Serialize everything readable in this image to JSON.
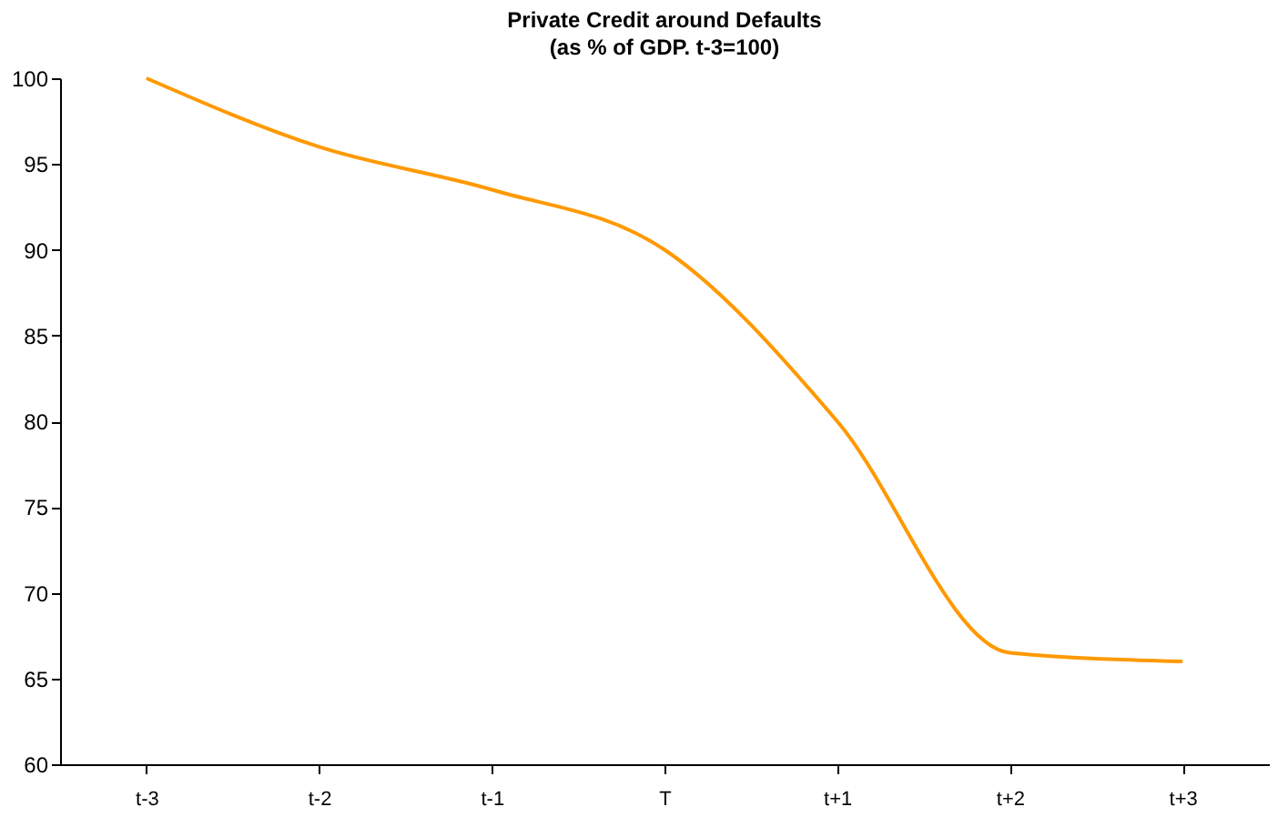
{
  "chart_data": {
    "type": "line",
    "title": "Private Credit around Defaults",
    "subtitle": "(as % of GDP.  t-3=100)",
    "categories": [
      "t-3",
      "t-2",
      "t-1",
      "T",
      "t+1",
      "t+2",
      "t+3"
    ],
    "series": [
      {
        "color": "#ff9900",
        "values": [
          100,
          96,
          93.5,
          90,
          80,
          66.5,
          66
        ]
      }
    ],
    "ylim": [
      60,
      100
    ],
    "yticks": [
      60,
      65,
      70,
      75,
      80,
      85,
      90,
      95,
      100
    ],
    "grid": false,
    "legend": false,
    "marker": "none",
    "line_style": "solid"
  }
}
